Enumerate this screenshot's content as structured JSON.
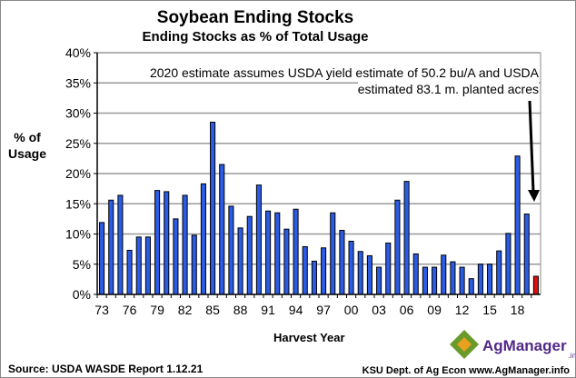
{
  "chart_data": {
    "type": "bar",
    "title": "Soybean Ending Stocks",
    "subtitle": "Ending Stocks as % of Total Usage",
    "ylabel": "% of\nUsage",
    "xlabel": "Harvest Year",
    "ylim": [
      0,
      40
    ],
    "yticks": [
      "0%",
      "5%",
      "10%",
      "15%",
      "20%",
      "25%",
      "30%",
      "35%",
      "40%"
    ],
    "xtick_labels": [
      "73",
      "76",
      "79",
      "82",
      "85",
      "88",
      "91",
      "94",
      "97",
      "00",
      "03",
      "06",
      "09",
      "12",
      "15",
      "18"
    ],
    "categories": [
      1973,
      1974,
      1975,
      1976,
      1977,
      1978,
      1979,
      1980,
      1981,
      1982,
      1983,
      1984,
      1985,
      1986,
      1987,
      1988,
      1989,
      1990,
      1991,
      1992,
      1993,
      1994,
      1995,
      1996,
      1997,
      1998,
      1999,
      2000,
      2001,
      2002,
      2003,
      2004,
      2005,
      2006,
      2007,
      2008,
      2009,
      2010,
      2011,
      2012,
      2013,
      2014,
      2015,
      2016,
      2017,
      2018,
      2019,
      2020
    ],
    "values": [
      11.9,
      15.6,
      16.4,
      7.3,
      9.5,
      9.5,
      17.2,
      17.0,
      12.5,
      16.4,
      9.8,
      18.3,
      28.5,
      21.5,
      14.6,
      11.0,
      12.9,
      18.1,
      13.8,
      13.5,
      10.8,
      14.1,
      7.9,
      5.5,
      7.7,
      13.5,
      10.6,
      8.8,
      7.1,
      6.4,
      4.5,
      8.5,
      15.6,
      18.7,
      6.7,
      4.5,
      4.5,
      6.5,
      5.4,
      4.5,
      2.6,
      5.0,
      5.0,
      7.2,
      10.1,
      22.9,
      13.3,
      3.0
    ],
    "grid": true,
    "colors": {
      "bar": "#2b5ce6",
      "estimate_bar": "#e01010"
    },
    "annotation": "2020 estimate assumes USDA yield estimate of 50.2 bu/A and USDA\nestimated 83.1 m. planted acres"
  },
  "source": "Source:  USDA WASDE Report 1.12.21",
  "footer": "KSU Dept. of Ag Econ   www.AgManager.info",
  "logo": {
    "text": "AgManager",
    "suffix": ".info"
  }
}
